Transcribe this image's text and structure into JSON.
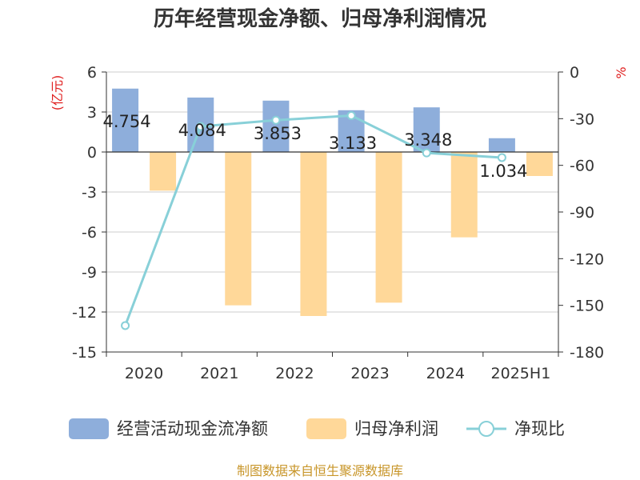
{
  "title": "历年经营现金净额、归母净利润情况",
  "source": "制图数据来自恒生聚源数据库",
  "chart_data": {
    "type": "bar",
    "categories": [
      "2020",
      "2021",
      "2022",
      "2023",
      "2024",
      "2025H1"
    ],
    "series": [
      {
        "name": "经营活动现金流净额",
        "type": "bar",
        "axis": "left",
        "color": "#8eaedb",
        "values": [
          4.754,
          4.084,
          3.853,
          3.133,
          3.348,
          1.034
        ],
        "data_labels": [
          "4.754",
          "4.084",
          "3.853",
          "3.133",
          "3.348",
          "1.034"
        ]
      },
      {
        "name": "归母净利润",
        "type": "bar",
        "axis": "left",
        "color": "#ffd899",
        "values": [
          -2.9,
          -11.5,
          -12.3,
          -11.3,
          -6.4,
          -1.8
        ]
      },
      {
        "name": "净现比",
        "type": "line",
        "axis": "right",
        "color": "#88d0d8",
        "values": [
          -163,
          -35,
          -31,
          -28,
          -52,
          -55
        ]
      }
    ],
    "left_axis": {
      "label": "(亿元)",
      "ylim": [
        -15,
        6
      ],
      "ticks": [
        6,
        3,
        0,
        -3,
        -6,
        -9,
        -12,
        -15
      ]
    },
    "right_axis": {
      "label": "%",
      "ylim": [
        -180,
        0
      ],
      "ticks": [
        0,
        -30,
        -60,
        -90,
        -120,
        -150,
        -180
      ]
    },
    "grid": true,
    "legend_position": "bottom"
  }
}
